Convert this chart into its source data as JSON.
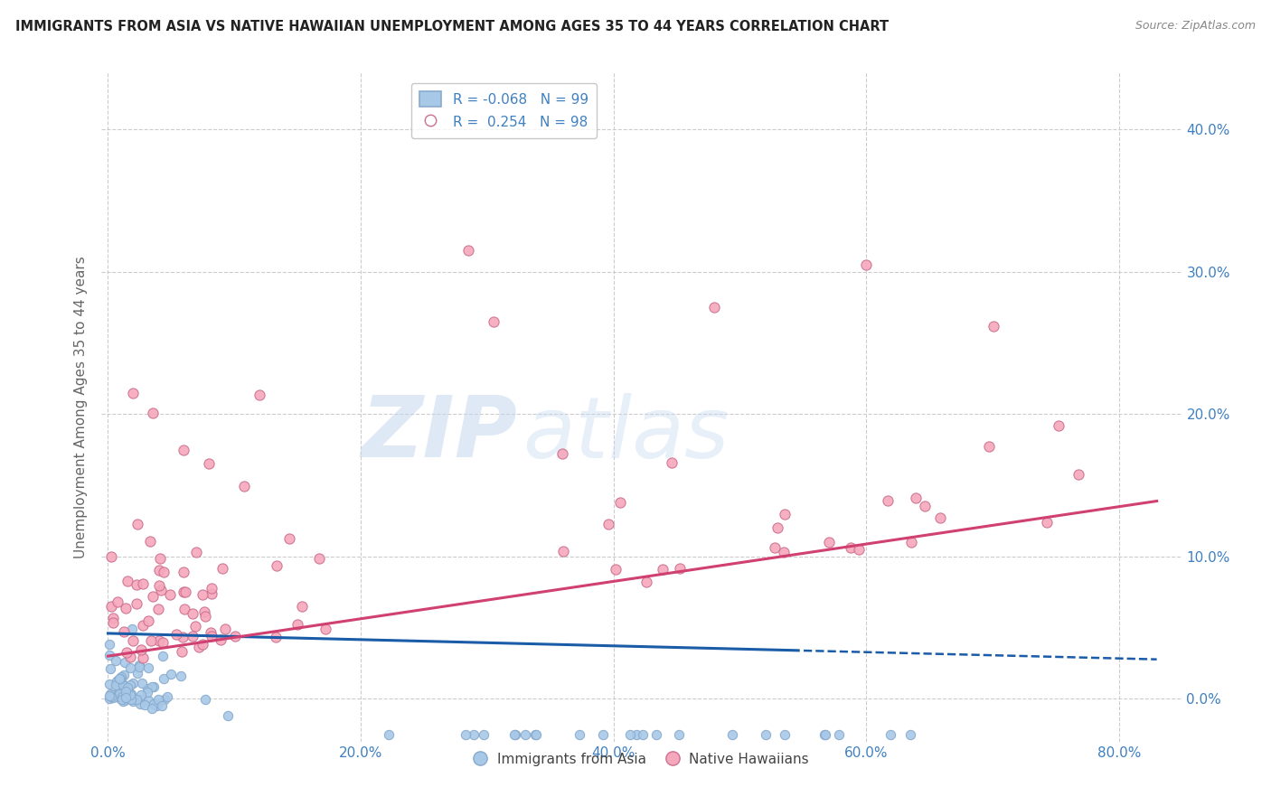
{
  "title": "IMMIGRANTS FROM ASIA VS NATIVE HAWAIIAN UNEMPLOYMENT AMONG AGES 35 TO 44 YEARS CORRELATION CHART",
  "source": "Source: ZipAtlas.com",
  "ylabel": "Unemployment Among Ages 35 to 44 years",
  "xlabel_ticks": [
    "0.0%",
    "20.0%",
    "40.0%",
    "60.0%",
    "80.0%"
  ],
  "xlabel_vals": [
    0.0,
    0.2,
    0.4,
    0.6,
    0.8
  ],
  "ylabel_ticks": [
    "0.0%",
    "10.0%",
    "20.0%",
    "30.0%",
    "40.0%"
  ],
  "ylabel_vals": [
    0.0,
    0.1,
    0.2,
    0.3,
    0.4
  ],
  "xlim": [
    -0.005,
    0.85
  ],
  "ylim": [
    -0.03,
    0.44
  ],
  "legend_r_blue": "-0.068",
  "legend_n_blue": "99",
  "legend_r_pink": "0.254",
  "legend_n_pink": "98",
  "blue_color": "#a8c8e8",
  "pink_color": "#f5a8bc",
  "trend_blue_color": "#1a5ca8",
  "trend_pink_color": "#d04070",
  "grid_color": "#cccccc",
  "watermark_zip": "ZIP",
  "watermark_atlas": "atlas",
  "legend_label_blue": "Immigrants from Asia",
  "legend_label_pink": "Native Hawaiians",
  "axis_color": "#4080c0",
  "title_color": "#222222",
  "source_color": "#888888"
}
